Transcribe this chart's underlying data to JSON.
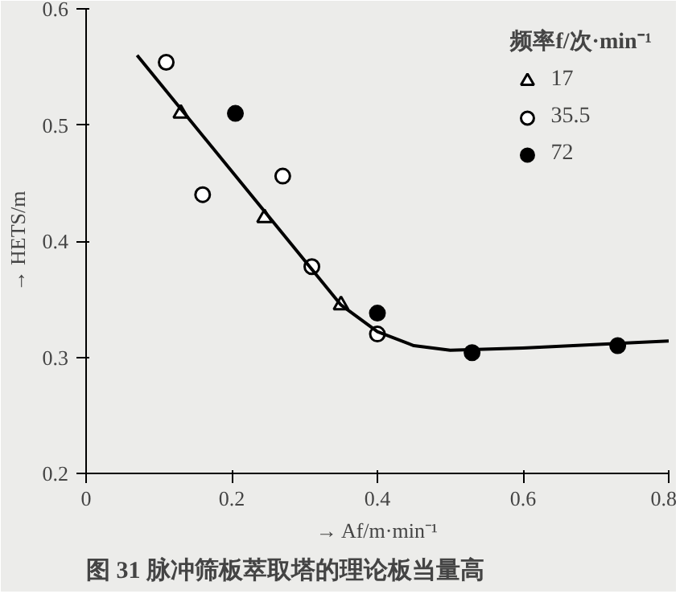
{
  "chart_data": {
    "type": "scatter",
    "xlabel": "→ Af/m·min⁻¹",
    "ylabel": "→ HETS/m",
    "legend_title": "频率f/次·min⁻¹",
    "annotations": [
      "图 31 脉冲筛板萃取塔的理论板当量高"
    ],
    "xlim": [
      0,
      0.8
    ],
    "xticks": [
      0,
      0.2,
      0.4,
      0.6,
      0.8
    ],
    "ylim": [
      0.2,
      0.6
    ],
    "yticks": [
      0.2,
      0.3,
      0.4,
      0.5,
      0.6
    ],
    "grid": false,
    "legend": "top right",
    "series": [
      {
        "name": "17",
        "color": "#ffffff",
        "marker": "triangle",
        "x": [
          0.13,
          0.245,
          0.35
        ],
        "values": [
          0.51,
          0.42,
          0.345
        ]
      },
      {
        "name": "35.5",
        "color": "#ffffff",
        "marker": "circle",
        "x": [
          0.11,
          0.16,
          0.27,
          0.31,
          0.4
        ],
        "values": [
          0.554,
          0.44,
          0.456,
          0.378,
          0.32
        ]
      },
      {
        "name": "72",
        "color": "#000000",
        "marker": "circle",
        "x": [
          0.205,
          0.4,
          0.53,
          0.73
        ],
        "values": [
          0.51,
          0.338,
          0.304,
          0.31
        ]
      },
      {
        "type": "line",
        "color": "#000000",
        "line_style": "solid",
        "marker": "none",
        "x": [
          0.07,
          0.35,
          0.4,
          0.45,
          0.5,
          0.6,
          0.8
        ],
        "values": [
          0.56,
          0.345,
          0.322,
          0.31,
          0.306,
          0.308,
          0.314
        ]
      }
    ]
  }
}
